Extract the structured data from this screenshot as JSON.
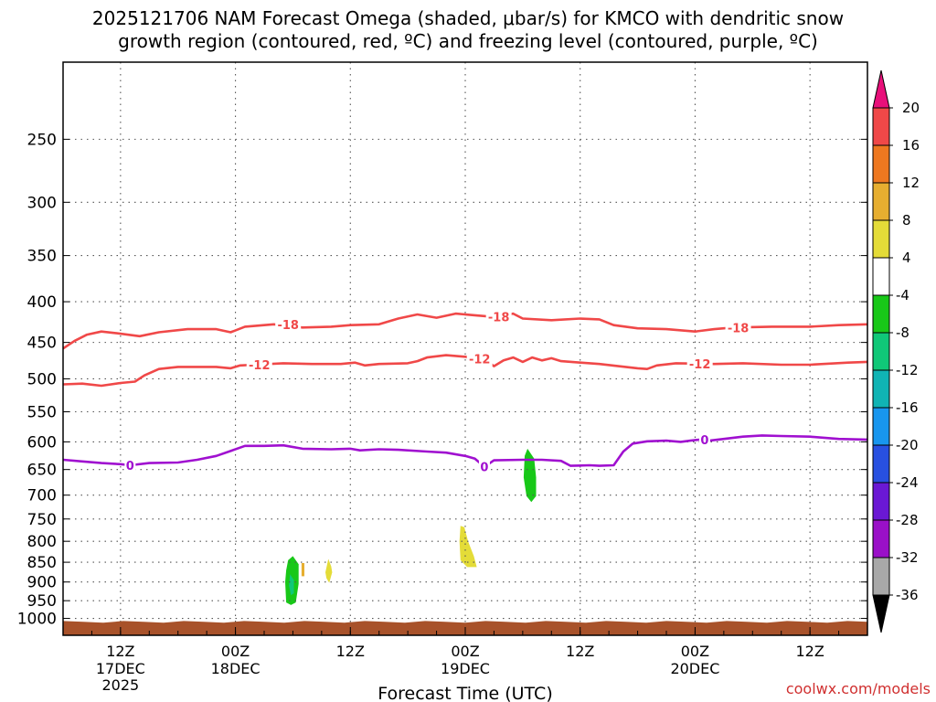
{
  "chart_data": {
    "type": "contour",
    "title_line1": "2025121706 NAM Forecast Omega (shaded, μbar/s) for KMCO with dendritic snow",
    "title_line2": "growth region (contoured, red, ºC) and freezing level (contoured, purple, ºC)",
    "xlabel": "Forecast Time (UTC)",
    "credit": "coolwx.com/models",
    "yaxis": {
      "scale": "log",
      "reversed": true,
      "unit": "hPa",
      "range": [
        1050,
        200
      ],
      "ticks": [
        250,
        300,
        350,
        400,
        450,
        500,
        550,
        600,
        650,
        700,
        750,
        800,
        850,
        900,
        950,
        1000
      ]
    },
    "xaxis": {
      "range_hours": [
        0,
        84
      ],
      "ticks": [
        {
          "hour": 6,
          "line1": "12Z",
          "line2": "17DEC",
          "line3": "2025"
        },
        {
          "hour": 18,
          "line1": "00Z",
          "line2": "18DEC",
          "line3": ""
        },
        {
          "hour": 30,
          "line1": "12Z",
          "line2": "",
          "line3": ""
        },
        {
          "hour": 42,
          "line1": "00Z",
          "line2": "19DEC",
          "line3": ""
        },
        {
          "hour": 54,
          "line1": "12Z",
          "line2": "",
          "line3": ""
        },
        {
          "hour": 66,
          "line1": "00Z",
          "line2": "20DEC",
          "line3": ""
        },
        {
          "hour": 78,
          "line1": "12Z",
          "line2": "",
          "line3": ""
        }
      ]
    },
    "grid": true,
    "colorbar": {
      "labels": [
        "20",
        "16",
        "12",
        "8",
        "4",
        "-4",
        "-8",
        "-12",
        "-16",
        "-20",
        "-24",
        "-28",
        "-32",
        "-36"
      ],
      "top_color": "#e8107a",
      "bottom_color": "#000000",
      "colors": [
        "#f04848",
        "#ee7820",
        "#e6ae30",
        "#e4dc38",
        "#ffffff",
        "#18c818",
        "#10c878",
        "#10b4b4",
        "#1896ee",
        "#2850e0",
        "#6a18d4",
        "#9a10c8",
        "#a8a8a8"
      ]
    },
    "contours": [
      {
        "label": "-18",
        "color": "#f04848",
        "label_hours": [
          23.5,
          45.5,
          70.5
        ],
        "points": [
          [
            0,
            458
          ],
          [
            1.2,
            448
          ],
          [
            2.5,
            440
          ],
          [
            4,
            436
          ],
          [
            5.5,
            438
          ],
          [
            8,
            442
          ],
          [
            10,
            437
          ],
          [
            13,
            433
          ],
          [
            16,
            433
          ],
          [
            17.5,
            437
          ],
          [
            19,
            430
          ],
          [
            22,
            427
          ],
          [
            25,
            431
          ],
          [
            28,
            430
          ],
          [
            30,
            428
          ],
          [
            33,
            427
          ],
          [
            35,
            420
          ],
          [
            37,
            415
          ],
          [
            39,
            419
          ],
          [
            41,
            414
          ],
          [
            43,
            416
          ],
          [
            45,
            418
          ],
          [
            47,
            414
          ],
          [
            48,
            420
          ],
          [
            51,
            422
          ],
          [
            54,
            420
          ],
          [
            56,
            421
          ],
          [
            57.5,
            428
          ],
          [
            60,
            432
          ],
          [
            63,
            433
          ],
          [
            66,
            436
          ],
          [
            68,
            433
          ],
          [
            70,
            431
          ],
          [
            74,
            430
          ],
          [
            78,
            430
          ],
          [
            81,
            428
          ],
          [
            84,
            427
          ]
        ]
      },
      {
        "label": "-12",
        "color": "#f04848",
        "label_hours": [
          20.5,
          43.5,
          66.5
        ],
        "points": [
          [
            0,
            508
          ],
          [
            2,
            507
          ],
          [
            4,
            510
          ],
          [
            6,
            506
          ],
          [
            7.5,
            504
          ],
          [
            8.5,
            495
          ],
          [
            10,
            486
          ],
          [
            12,
            483
          ],
          [
            14,
            483
          ],
          [
            16,
            483
          ],
          [
            17.5,
            485
          ],
          [
            18.5,
            481
          ],
          [
            20,
            480
          ],
          [
            23,
            478
          ],
          [
            26,
            479
          ],
          [
            29,
            479
          ],
          [
            30.5,
            477
          ],
          [
            31.5,
            481
          ],
          [
            33,
            479
          ],
          [
            36,
            478
          ],
          [
            37,
            475
          ],
          [
            38,
            470
          ],
          [
            40,
            467
          ],
          [
            42,
            469
          ],
          [
            44,
            472
          ],
          [
            45,
            482
          ],
          [
            46,
            474
          ],
          [
            47,
            470
          ],
          [
            48,
            476
          ],
          [
            49,
            470
          ],
          [
            50,
            474
          ],
          [
            51,
            471
          ],
          [
            52,
            475
          ],
          [
            54,
            477
          ],
          [
            56,
            479
          ],
          [
            58,
            482
          ],
          [
            60,
            485
          ],
          [
            61,
            486
          ],
          [
            62,
            481
          ],
          [
            64,
            478
          ],
          [
            68,
            479
          ],
          [
            71,
            478
          ],
          [
            75,
            480
          ],
          [
            78,
            480
          ],
          [
            82,
            477
          ],
          [
            84,
            476
          ]
        ]
      },
      {
        "label": "0",
        "color": "#a010d0",
        "label_hours": [
          7,
          44,
          67
        ],
        "points": [
          [
            0,
            632
          ],
          [
            2,
            635
          ],
          [
            4,
            638
          ],
          [
            6,
            640
          ],
          [
            7,
            642
          ],
          [
            9,
            638
          ],
          [
            12,
            637
          ],
          [
            14,
            632
          ],
          [
            16,
            625
          ],
          [
            17.5,
            616
          ],
          [
            19,
            607
          ],
          [
            21,
            607
          ],
          [
            23,
            606
          ],
          [
            25,
            612
          ],
          [
            28,
            613
          ],
          [
            30,
            612
          ],
          [
            31,
            615
          ],
          [
            33,
            613
          ],
          [
            35,
            614
          ],
          [
            38,
            617
          ],
          [
            40,
            619
          ],
          [
            42,
            625
          ],
          [
            43,
            630
          ],
          [
            44,
            645
          ],
          [
            45,
            633
          ],
          [
            48,
            632
          ],
          [
            50,
            632
          ],
          [
            52,
            634
          ],
          [
            53,
            643
          ],
          [
            55,
            642
          ],
          [
            56,
            643
          ],
          [
            57.5,
            642
          ],
          [
            58.5,
            617
          ],
          [
            59.5,
            603
          ],
          [
            61,
            599
          ],
          [
            63,
            598
          ],
          [
            64.5,
            600
          ],
          [
            65.5,
            598
          ],
          [
            66.5,
            596
          ],
          [
            67.5,
            598
          ],
          [
            69,
            595
          ],
          [
            71,
            591
          ],
          [
            73,
            589
          ],
          [
            75,
            590
          ],
          [
            78,
            591
          ],
          [
            81,
            595
          ],
          [
            84,
            596
          ]
        ]
      }
    ],
    "shaded_regions": [
      {
        "color": "#18c818",
        "points": [
          [
            23.5,
            845
          ],
          [
            24,
            835
          ],
          [
            24.6,
            855
          ],
          [
            24.6,
            905
          ],
          [
            24.3,
            955
          ],
          [
            23.8,
            962
          ],
          [
            23.3,
            955
          ],
          [
            23.2,
            900
          ],
          [
            23.3,
            870
          ]
        ]
      },
      {
        "color": "#10c878",
        "points": [
          [
            23.7,
            880
          ],
          [
            24.1,
            895
          ],
          [
            24.1,
            930
          ],
          [
            23.8,
            935
          ],
          [
            23.6,
            910
          ]
        ]
      },
      {
        "color": "#e6ae30",
        "points": [
          [
            24.9,
            852
          ],
          [
            25.2,
            852
          ],
          [
            25.2,
            885
          ],
          [
            24.9,
            885
          ]
        ]
      },
      {
        "color": "#e4dc38",
        "points": [
          [
            27.4,
            875
          ],
          [
            27.7,
            842
          ],
          [
            28,
            860
          ],
          [
            28.1,
            875
          ],
          [
            27.8,
            902
          ],
          [
            27.5,
            890
          ]
        ]
      },
      {
        "color": "#e4dc38",
        "points": [
          [
            41.5,
            765
          ],
          [
            41.9,
            768
          ],
          [
            42.3,
            800
          ],
          [
            42.9,
            835
          ],
          [
            43.2,
            862
          ],
          [
            42.2,
            862
          ],
          [
            41.5,
            845
          ],
          [
            41.4,
            800
          ]
        ]
      },
      {
        "color": "#18c818",
        "points": [
          [
            48.5,
            612
          ],
          [
            49.2,
            630
          ],
          [
            49.4,
            665
          ],
          [
            49.4,
            702
          ],
          [
            48.9,
            714
          ],
          [
            48.4,
            702
          ],
          [
            48.1,
            665
          ],
          [
            48.2,
            625
          ]
        ]
      }
    ],
    "terrain": {
      "color": "#a8522a",
      "pressure_top": 1010,
      "pressure_bottom": 1050
    }
  }
}
